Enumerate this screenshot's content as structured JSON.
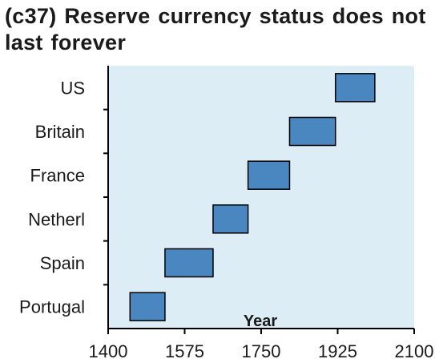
{
  "chart_data": {
    "type": "bar",
    "orientation": "horizontal-range",
    "title": "(c37) Reserve currency status does not last forever",
    "xlabel": "Year",
    "ylabel": "",
    "xlim": [
      1400,
      2100
    ],
    "xticks": [
      1400,
      1575,
      1750,
      1925,
      2100
    ],
    "categories": [
      "Portugal",
      "Spain",
      "Netherl",
      "France",
      "Britain",
      "US"
    ],
    "ranges": [
      {
        "category": "Portugal",
        "start": 1450,
        "end": 1530
      },
      {
        "category": "Spain",
        "start": 1530,
        "end": 1640
      },
      {
        "category": "Netherl",
        "start": 1640,
        "end": 1720
      },
      {
        "category": "France",
        "start": 1720,
        "end": 1815
      },
      {
        "category": "Britain",
        "start": 1815,
        "end": 1920
      },
      {
        "category": "US",
        "start": 1920,
        "end": 2010
      }
    ],
    "grid": false,
    "legend": "none",
    "plot_background": "#dcedf5",
    "bar_color": "#4a86c0",
    "bar_edge_color": "#000000"
  }
}
